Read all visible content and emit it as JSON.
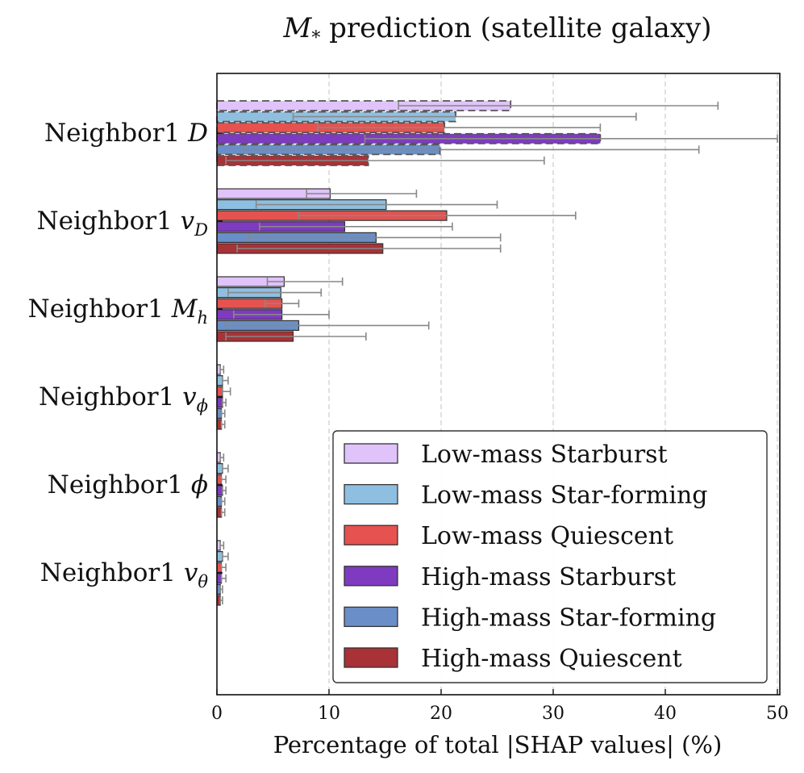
{
  "chart_data": {
    "type": "bar",
    "orientation": "horizontal",
    "title_prefix": "M",
    "title_subscript": "*",
    "title_rest": " prediction (satellite galaxy)",
    "xlabel": "Percentage of total |SHAP values| (%)",
    "xlim": [
      0,
      50
    ],
    "xticks": [
      "0",
      "10",
      "20",
      "30",
      "40",
      "50"
    ],
    "grid": "vertical dashed",
    "legend_position": "lower-right",
    "categories": [
      {
        "base": "Neighbor1 ",
        "sym": "D",
        "sub": ""
      },
      {
        "base": "Neighbor1 ",
        "sym": "v",
        "sub": "D"
      },
      {
        "base": "Neighbor1 ",
        "sym": "M",
        "sub": "h"
      },
      {
        "base": "Neighbor1 ",
        "sym": "v",
        "sub": "ϕ"
      },
      {
        "base": "Neighbor1 ",
        "sym": "ϕ",
        "sub": ""
      },
      {
        "base": "Neighbor1 ",
        "sym": "v",
        "sub": "θ"
      }
    ],
    "highlighted_category": "Neighbor1 D",
    "series": [
      {
        "name": "Low-mass Starburst",
        "color": "#e0c3fb",
        "values": [
          26.2,
          10.1,
          6.0,
          0.3,
          0.3,
          0.3
        ],
        "err_low": [
          16.2,
          8.0,
          4.5,
          0.3,
          0.3,
          0.3
        ],
        "err_high": [
          44.7,
          17.8,
          11.2,
          0.6,
          0.6,
          0.6
        ]
      },
      {
        "name": "Low-mass Star-forming",
        "color": "#8fbfe0",
        "values": [
          21.3,
          15.1,
          5.7,
          0.5,
          0.5,
          0.5
        ],
        "err_low": [
          6.8,
          3.5,
          1.0,
          0.5,
          0.5,
          0.5
        ],
        "err_high": [
          37.4,
          25.0,
          9.3,
          1.0,
          1.0,
          1.0
        ]
      },
      {
        "name": "Low-mass Quiescent",
        "color": "#e5524f",
        "values": [
          20.3,
          20.5,
          5.8,
          0.5,
          0.4,
          0.4
        ],
        "err_low": [
          9.0,
          7.3,
          4.3,
          0.5,
          0.4,
          0.4
        ],
        "err_high": [
          34.2,
          32.0,
          7.3,
          1.2,
          0.8,
          0.8
        ]
      },
      {
        "name": "High-mass Starburst",
        "color": "#7e3bbf",
        "values": [
          34.2,
          11.4,
          5.8,
          0.5,
          0.5,
          0.4
        ],
        "err_low": [
          13.2,
          3.8,
          1.5,
          0.5,
          0.5,
          0.4
        ],
        "err_high": [
          50.0,
          21.0,
          10.0,
          0.8,
          0.8,
          0.8
        ]
      },
      {
        "name": "High-mass Star-forming",
        "color": "#6a8fc8",
        "values": [
          19.9,
          14.2,
          7.3,
          0.4,
          0.4,
          0.3
        ],
        "err_low": [
          2.4,
          2.8,
          0.8,
          0.4,
          0.4,
          0.3
        ],
        "err_high": [
          43.0,
          25.3,
          18.9,
          0.7,
          0.7,
          0.5
        ]
      },
      {
        "name": "High-mass Quiescent",
        "color": "#a83236",
        "values": [
          13.5,
          14.8,
          6.8,
          0.4,
          0.4,
          0.3
        ],
        "err_low": [
          0.8,
          1.8,
          0.8,
          0.4,
          0.4,
          0.3
        ],
        "err_high": [
          29.2,
          25.3,
          13.3,
          0.7,
          0.7,
          0.5
        ]
      }
    ]
  }
}
